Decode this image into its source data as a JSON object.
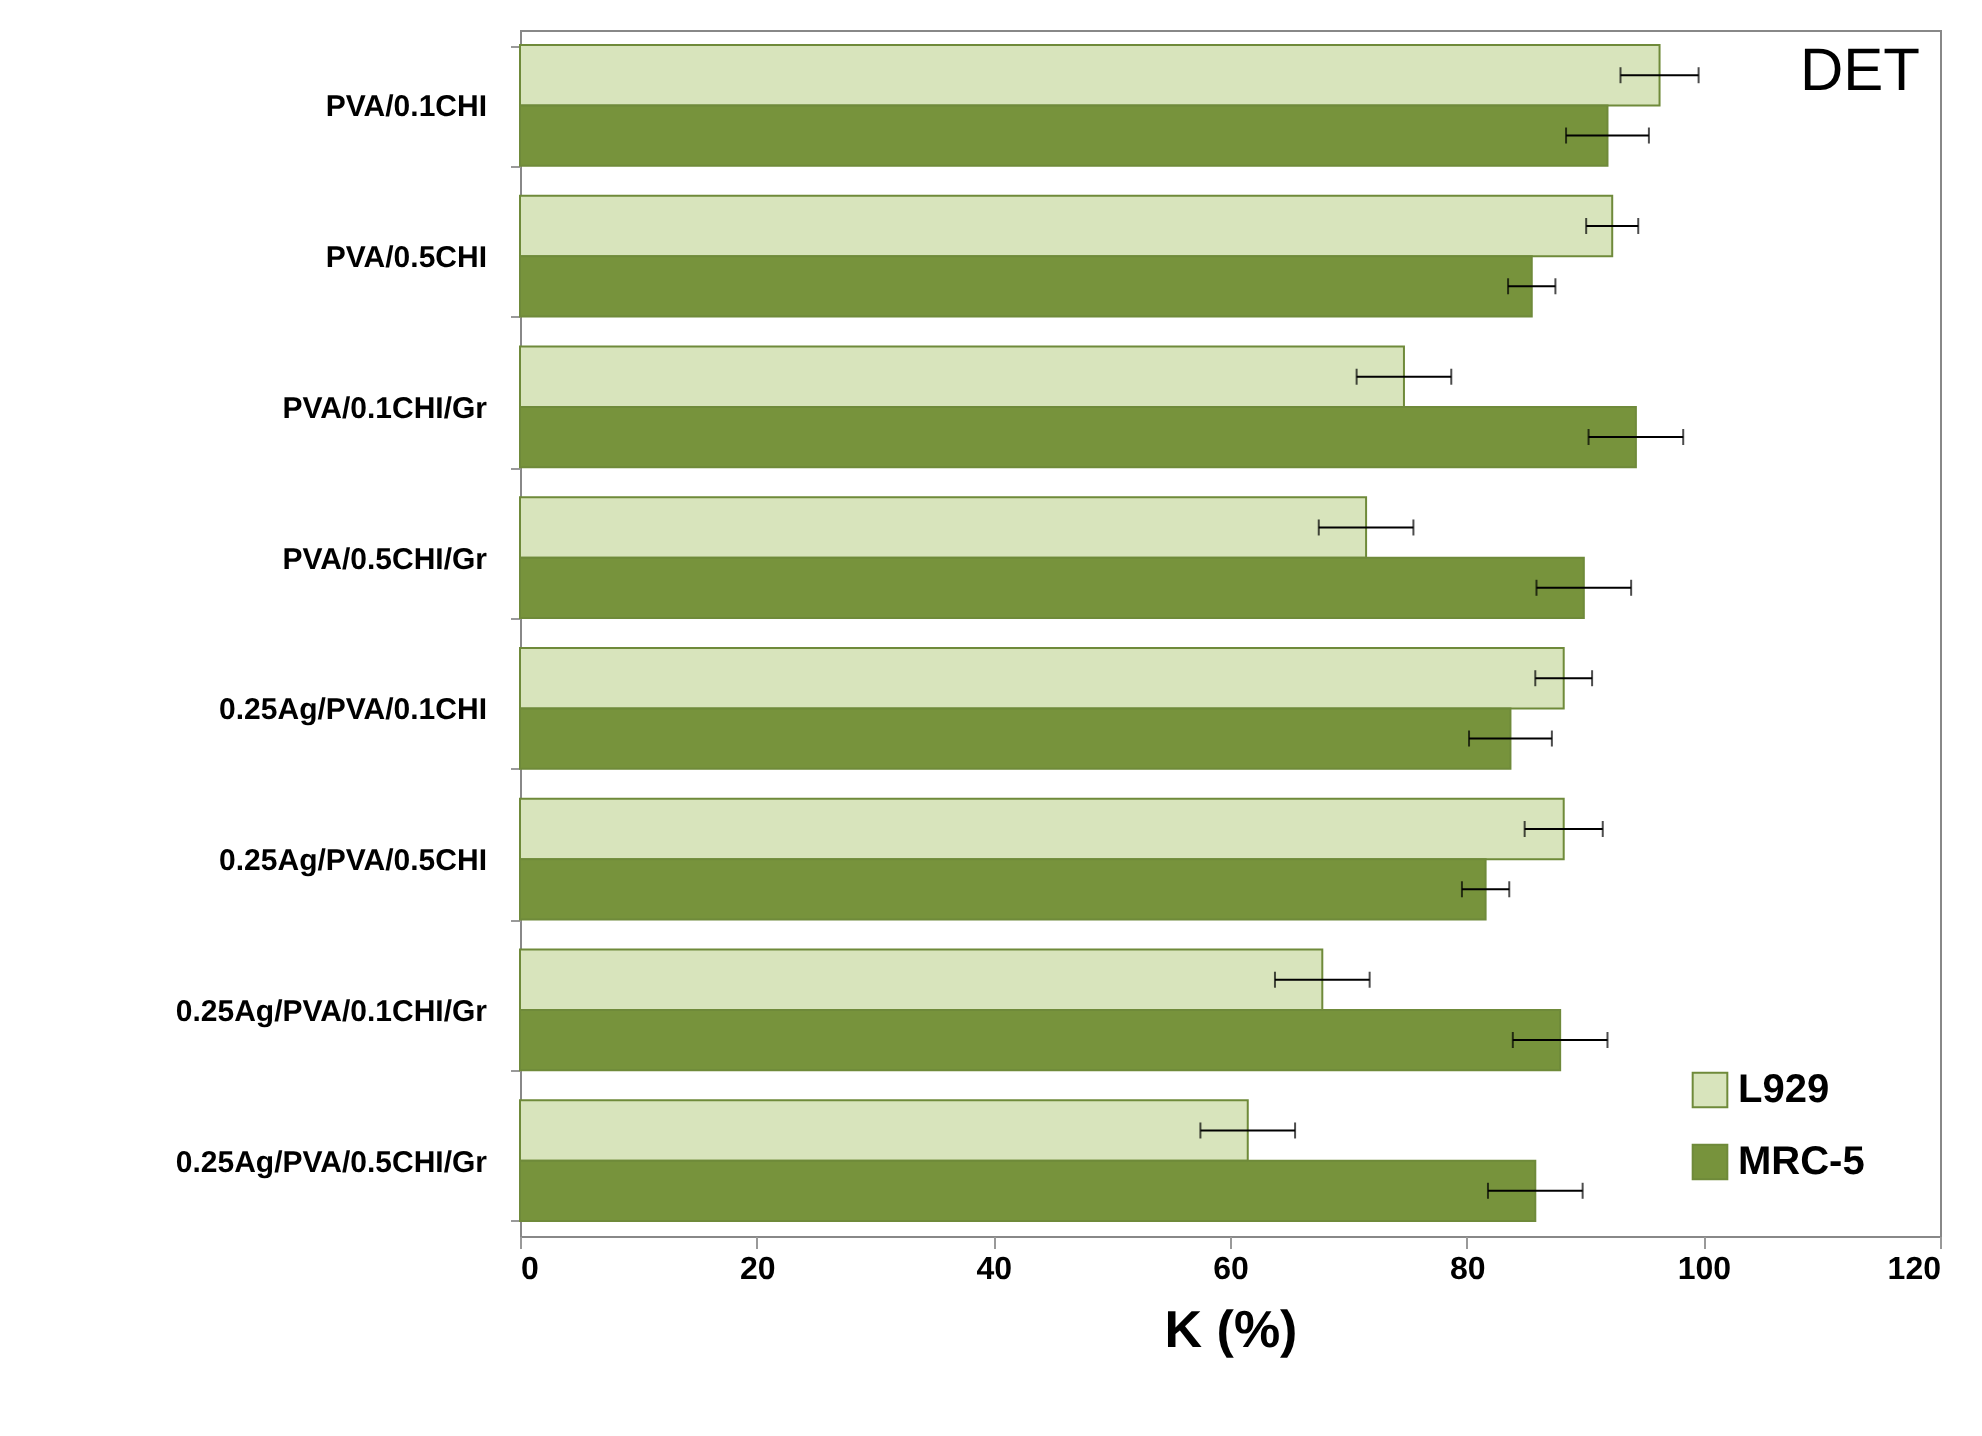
{
  "chart_data": {
    "type": "bar",
    "orientation": "horizontal",
    "xlabel": "K (%)",
    "annotations": [
      "DET"
    ],
    "categories": [
      "PVA/0.1CHI",
      "PVA/0.5CHI",
      "PVA/0.1CHI/Gr",
      "PVA/0.5CHI/Gr",
      "0.25Ag/PVA/0.1CHI",
      "0.25Ag/PVA/0.5CHI",
      "0.25Ag/PVA/0.1CHI/Gr",
      "0.25Ag/PVA/0.5CHI/Gr"
    ],
    "series": [
      {
        "name": "L929",
        "color": "#d8e4bc",
        "values": [
          96.3,
          92.3,
          74.7,
          71.5,
          88.2,
          88.2,
          67.8,
          61.5
        ],
        "errors": [
          3.3,
          2.2,
          4,
          4,
          2.4,
          3.3,
          4,
          4
        ]
      },
      {
        "name": "MRC-5",
        "color": "#77933c",
        "values": [
          91.9,
          85.5,
          94.3,
          89.9,
          83.7,
          81.6,
          87.9,
          85.8
        ],
        "errors": [
          3.5,
          2,
          4,
          4,
          3.5,
          2,
          4,
          4
        ]
      }
    ],
    "xlim": [
      0,
      120
    ],
    "xticks": [
      0,
      20,
      40,
      60,
      80,
      100,
      120
    ],
    "grid": false,
    "legend": "bottom right"
  }
}
